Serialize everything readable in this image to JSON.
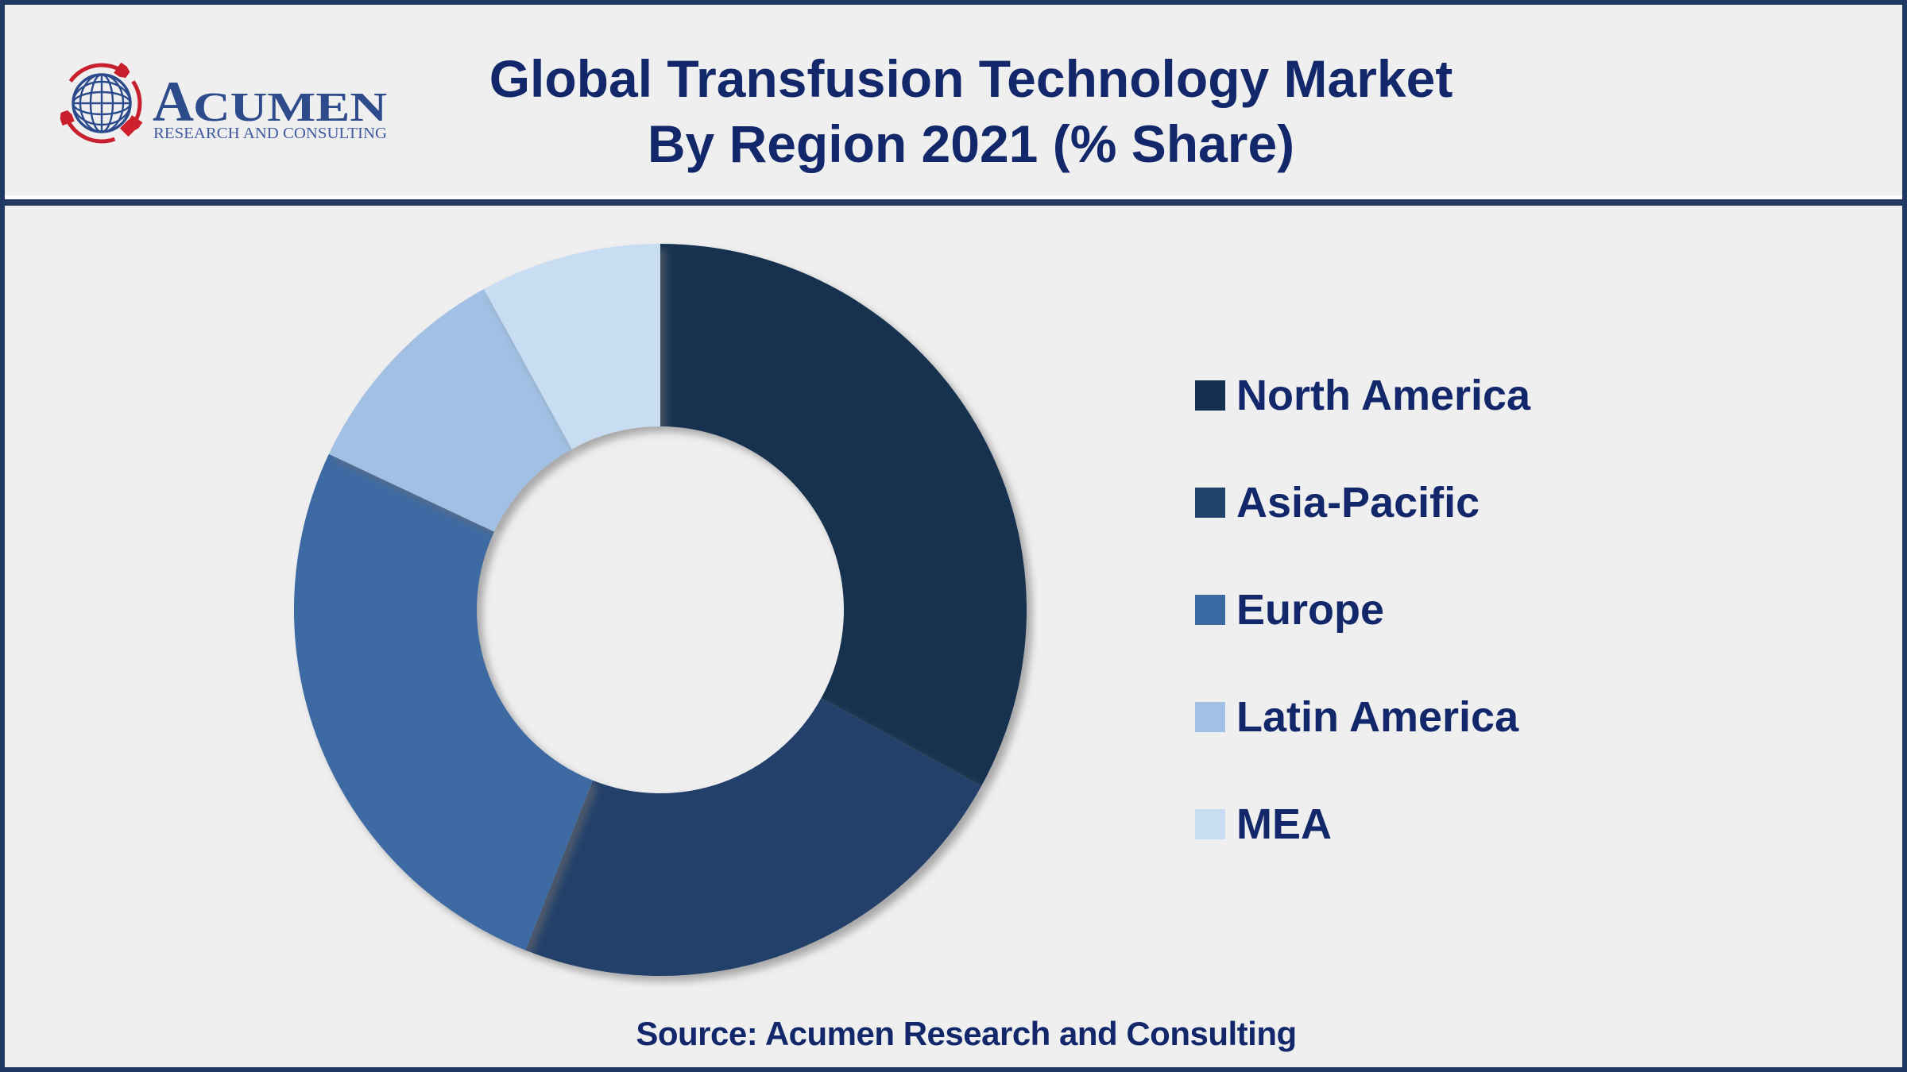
{
  "header": {
    "logo": {
      "brand_initial": "A",
      "brand_rest": "CUMEN",
      "tagline": "RESEARCH AND CONSULTING"
    },
    "title_line1": "Global Transfusion Technology Market",
    "title_line2": "By Region 2021 (% Share)"
  },
  "footer": {
    "source_text": "Source: Acumen Research and Consulting"
  },
  "chart_data": {
    "type": "pie",
    "subtype": "donut",
    "title": "Global Transfusion Technology Market By Region 2021 (% Share)",
    "year": "2021",
    "unit": "% share",
    "categories": [
      "North America",
      "Asia-Pacific",
      "Europe",
      "Latin America",
      "MEA"
    ],
    "values": [
      33,
      23,
      26,
      10,
      8
    ],
    "colors": [
      "#15304f",
      "#20416a",
      "#3c6ba3",
      "#a1c0e3",
      "#c8dcf2"
    ],
    "direction": "clockwise",
    "start_angle_deg": 0,
    "inner_radius_ratio": 0.5,
    "legend_position": "right",
    "data_labels_shown": false
  },
  "colors": {
    "background": "#efeff0",
    "frame_navy": "#1f3864",
    "divider_navy": "#24395f",
    "divider_highlight": "#fdfdff",
    "title_text": "#12286b",
    "legend_text": "#12286b",
    "source_text": "#12286b",
    "logo_blue": "#2e4c8c",
    "logo_tagline_blue": "#41599f",
    "logo_globe_blue": "#2b4a8b",
    "logo_red": "#c9202e"
  }
}
